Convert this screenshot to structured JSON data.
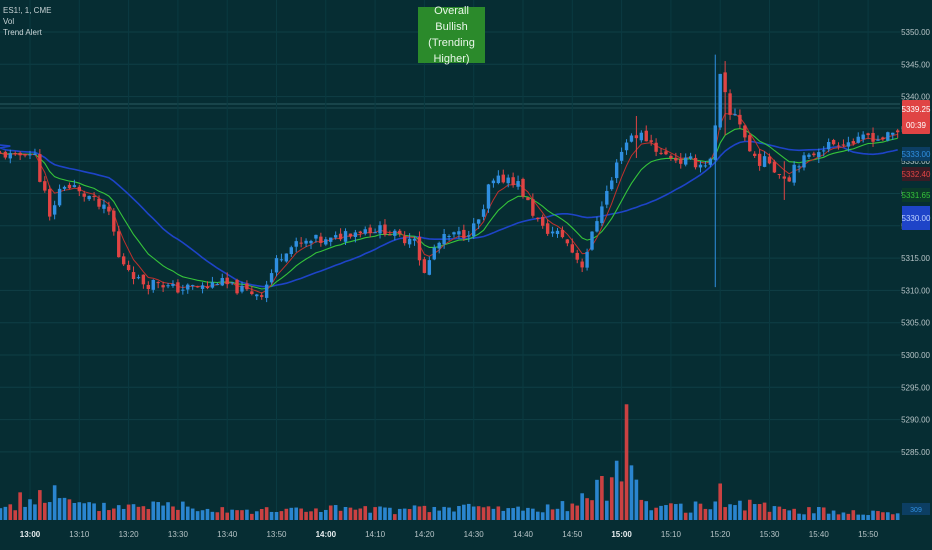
{
  "legend": {
    "symbol": "ES1!, 1, CME",
    "vol": "Vol",
    "trend_alert": "Trend Alert"
  },
  "banner": {
    "line1": "Overall Bullish",
    "line2": "(Trending Higher)",
    "color": "#2b8a2b"
  },
  "price_labels": {
    "last_price": "5339.25",
    "countdown": "00:39",
    "ma_blue": "5333.00",
    "ma_red": "5332.40",
    "ma_green": "5331.65",
    "ma_navy": "5330.00",
    "volume_last": "309"
  },
  "colors": {
    "background": "#062d33",
    "up": "#2f8fe0",
    "down": "#e04444",
    "ma_red": "#c0302c",
    "ma_green": "#35c43a",
    "ma_blue": "#1e44c8"
  },
  "chart_data": {
    "type": "candlestick",
    "y_axis_ticks": [
      "5350.00",
      "5345.00",
      "5340.00",
      "5335.00",
      "5330.00",
      "5325.00",
      "5320.00",
      "5315.00",
      "5310.00",
      "5305.00",
      "5300.00",
      "5295.00",
      "5290.00",
      "5285.00"
    ],
    "ylim": [
      5283.5,
      5352.5
    ],
    "x_ticks": [
      {
        "label": "13:00",
        "minute": 0,
        "bold": true
      },
      {
        "label": "13:10",
        "minute": 10
      },
      {
        "label": "13:20",
        "minute": 20
      },
      {
        "label": "13:30",
        "minute": 30
      },
      {
        "label": "13:40",
        "minute": 40
      },
      {
        "label": "13:50",
        "minute": 50
      },
      {
        "label": "14:00",
        "minute": 60,
        "bold": true
      },
      {
        "label": "14:10",
        "minute": 70
      },
      {
        "label": "14:20",
        "minute": 80
      },
      {
        "label": "14:30",
        "minute": 90
      },
      {
        "label": "14:40",
        "minute": 100
      },
      {
        "label": "14:50",
        "minute": 110
      },
      {
        "label": "15:00",
        "minute": 120,
        "bold": true
      },
      {
        "label": "15:10",
        "minute": 130
      },
      {
        "label": "15:20",
        "minute": 140
      },
      {
        "label": "15:30",
        "minute": 150
      },
      {
        "label": "15:40",
        "minute": 160
      },
      {
        "label": "15:50",
        "minute": 170
      }
    ],
    "price_anchors": [
      [
        -5,
        5331.0
      ],
      [
        -3,
        5330.5
      ],
      [
        -1,
        5331.5
      ],
      [
        1,
        5330.8
      ],
      [
        2,
        5327.5
      ],
      [
        3,
        5325.0
      ],
      [
        4,
        5321.0
      ],
      [
        5,
        5323.5
      ],
      [
        6,
        5325.5
      ],
      [
        7,
        5326.5
      ],
      [
        8,
        5325.8
      ],
      [
        9,
        5326.0
      ],
      [
        10,
        5325.0
      ],
      [
        12,
        5324.5
      ],
      [
        14,
        5323.0
      ],
      [
        16,
        5322.0
      ],
      [
        17,
        5319.0
      ],
      [
        18,
        5315.0
      ],
      [
        20,
        5313.5
      ],
      [
        22,
        5311.5
      ],
      [
        24,
        5311.0
      ],
      [
        26,
        5311.5
      ],
      [
        28,
        5310.5
      ],
      [
        30,
        5310.2
      ],
      [
        33,
        5310.5
      ],
      [
        36,
        5310.5
      ],
      [
        38,
        5311.5
      ],
      [
        41,
        5310.5
      ],
      [
        44,
        5309.8
      ],
      [
        47,
        5309.6
      ],
      [
        48,
        5311.0
      ],
      [
        50,
        5314.5
      ],
      [
        52,
        5316.5
      ],
      [
        54,
        5317.0
      ],
      [
        56,
        5317.3
      ],
      [
        58,
        5317.8
      ],
      [
        60,
        5317.5
      ],
      [
        62,
        5318.0
      ],
      [
        64,
        5319.0
      ],
      [
        66,
        5319.2
      ],
      [
        68,
        5319.5
      ],
      [
        70,
        5319.5
      ],
      [
        72,
        5319.4
      ],
      [
        74,
        5318.5
      ],
      [
        76,
        5318.0
      ],
      [
        78,
        5318.6
      ],
      [
        79,
        5315.0
      ],
      [
        80,
        5312.5
      ],
      [
        81,
        5314.5
      ],
      [
        82,
        5316.5
      ],
      [
        84,
        5318.0
      ],
      [
        86,
        5318.5
      ],
      [
        88,
        5318.8
      ],
      [
        90,
        5319.8
      ],
      [
        92,
        5322.0
      ],
      [
        93,
        5326.0
      ],
      [
        95,
        5327.0
      ],
      [
        97,
        5327.5
      ],
      [
        99,
        5326.5
      ],
      [
        100,
        5325.0
      ],
      [
        102,
        5322.0
      ],
      [
        104,
        5319.5
      ],
      [
        106,
        5319.0
      ],
      [
        108,
        5318.5
      ],
      [
        110,
        5316.0
      ],
      [
        112,
        5314.0
      ],
      [
        114,
        5318.5
      ],
      [
        116,
        5323.5
      ],
      [
        118,
        5327.0
      ],
      [
        120,
        5332.0
      ],
      [
        122,
        5334.0
      ],
      [
        124,
        5334.0
      ],
      [
        126,
        5333.0
      ],
      [
        128,
        5331.0
      ],
      [
        130,
        5330.8
      ],
      [
        132,
        5330.0
      ],
      [
        134,
        5330.0
      ],
      [
        136,
        5329.5
      ],
      [
        138,
        5330.0
      ],
      [
        139,
        5335.0
      ],
      [
        140,
        5343.0
      ],
      [
        141,
        5340.0
      ],
      [
        142,
        5337.0
      ],
      [
        143,
        5337.5
      ],
      [
        144,
        5336.0
      ],
      [
        146,
        5331.5
      ],
      [
        148,
        5330.0
      ],
      [
        150,
        5330.0
      ],
      [
        152,
        5328.0
      ],
      [
        154,
        5327.5
      ],
      [
        155,
        5329.5
      ],
      [
        156,
        5330.0
      ],
      [
        158,
        5330.5
      ],
      [
        160,
        5332.0
      ],
      [
        162,
        5332.5
      ],
      [
        164,
        5333.0
      ],
      [
        166,
        5333.0
      ],
      [
        168,
        5333.0
      ],
      [
        170,
        5334.0
      ],
      [
        172,
        5333.5
      ],
      [
        174,
        5333.8
      ],
      [
        176,
        5334.5
      ],
      [
        178,
        5334.0
      ]
    ],
    "spikes": [
      {
        "minute": 139,
        "high": 5346.5,
        "low": 5310.5
      },
      {
        "minute": 141,
        "high": 5345.5,
        "low": 5334.0
      },
      {
        "minute": 123,
        "high": 5337.0,
        "low": 5330.5
      },
      {
        "minute": 153,
        "high": 5330.0,
        "low": 5324.0
      }
    ],
    "volume_anchors": [
      [
        -5,
        20
      ],
      [
        -2,
        30
      ],
      [
        0,
        32
      ],
      [
        1,
        38
      ],
      [
        3,
        36
      ],
      [
        5,
        40
      ],
      [
        8,
        26
      ],
      [
        12,
        20
      ],
      [
        20,
        22
      ],
      [
        24,
        27
      ],
      [
        26,
        22
      ],
      [
        30,
        24
      ],
      [
        40,
        18
      ],
      [
        48,
        14
      ],
      [
        60,
        18
      ],
      [
        70,
        15
      ],
      [
        80,
        16
      ],
      [
        90,
        20
      ],
      [
        100,
        16
      ],
      [
        110,
        22
      ],
      [
        114,
        40
      ],
      [
        118,
        55
      ],
      [
        120,
        110
      ],
      [
        121,
        180
      ],
      [
        122,
        85
      ],
      [
        124,
        30
      ],
      [
        130,
        18
      ],
      [
        138,
        22
      ],
      [
        140,
        40
      ],
      [
        142,
        26
      ],
      [
        150,
        18
      ],
      [
        160,
        14
      ],
      [
        170,
        12
      ],
      [
        178,
        10
      ]
    ],
    "volume_ylim": [
      0,
      210
    ]
  }
}
